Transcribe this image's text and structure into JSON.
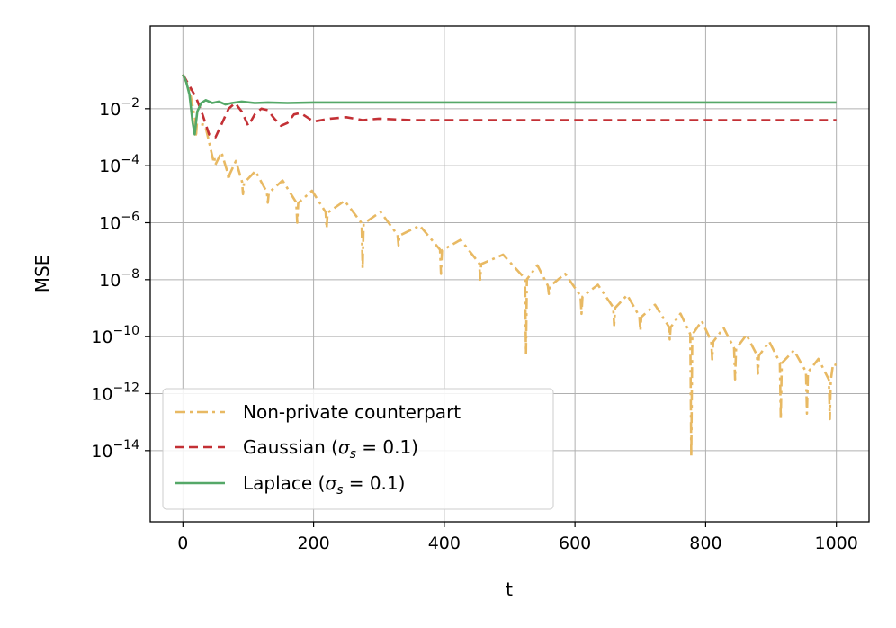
{
  "chart_data": {
    "type": "line",
    "title": "",
    "xlabel": "t",
    "ylabel": "MSE",
    "y_scale": "log",
    "xlim": [
      -50,
      1050
    ],
    "ylim_exponent": [
      -16.5,
      0.9
    ],
    "x_ticks": [
      0,
      200,
      400,
      600,
      800,
      1000
    ],
    "x_tick_labels": [
      "0",
      "200",
      "400",
      "600",
      "800",
      "1000"
    ],
    "y_tick_exponents": [
      -2,
      -4,
      -6,
      -8,
      -10,
      -12,
      -14
    ],
    "y_tick_labels": [
      {
        "base": "10",
        "exp": "−2"
      },
      {
        "base": "10",
        "exp": "−4"
      },
      {
        "base": "10",
        "exp": "−6"
      },
      {
        "base": "10",
        "exp": "−8"
      },
      {
        "base": "10",
        "exp": "−10"
      },
      {
        "base": "10",
        "exp": "−12"
      },
      {
        "base": "10",
        "exp": "−14"
      }
    ],
    "grid": true,
    "legend_position": "lower-left",
    "series": [
      {
        "name": "Non-private counterpart",
        "color": "#e8b963",
        "style": "dashdot",
        "description": "oscillating decay",
        "envelope_log10": [
          [
            0,
            -0.8
          ],
          [
            50,
            -3.4
          ],
          [
            100,
            -4.1
          ],
          [
            200,
            -4.9
          ],
          [
            300,
            -5.6
          ],
          [
            400,
            -6.4
          ],
          [
            500,
            -7.2
          ],
          [
            600,
            -7.9
          ],
          [
            700,
            -8.7
          ],
          [
            800,
            -9.5
          ],
          [
            900,
            -10.2
          ],
          [
            1000,
            -11.0
          ]
        ],
        "dips_log10": [
          [
            20,
            -3.0
          ],
          [
            48,
            -3.7
          ],
          [
            70,
            -4.5
          ],
          [
            92,
            -5.0
          ],
          [
            130,
            -5.3
          ],
          [
            175,
            -6.0
          ],
          [
            220,
            -6.2
          ],
          [
            275,
            -7.6
          ],
          [
            330,
            -6.8
          ],
          [
            395,
            -7.8
          ],
          [
            455,
            -8.0
          ],
          [
            525,
            -10.6
          ],
          [
            560,
            -8.5
          ],
          [
            610,
            -9.2
          ],
          [
            660,
            -9.6
          ],
          [
            700,
            -9.8
          ],
          [
            745,
            -10.1
          ],
          [
            778,
            -14.2
          ],
          [
            810,
            -10.8
          ],
          [
            845,
            -11.5
          ],
          [
            880,
            -11.3
          ],
          [
            915,
            -12.9
          ],
          [
            955,
            -12.7
          ],
          [
            990,
            -12.9
          ]
        ]
      },
      {
        "name": "Gaussian (σs = 0.1)",
        "name_parts": {
          "pre": "Gaussian (",
          "symbol": "σ",
          "sub": "s",
          "post": " = 0.1)"
        },
        "color": "#c33035",
        "style": "dashed",
        "description": "damped oscillation to steady state",
        "x": [
          0,
          10,
          20,
          30,
          40,
          50,
          60,
          70,
          80,
          90,
          100,
          110,
          120,
          130,
          140,
          150,
          160,
          170,
          180,
          190,
          200,
          225,
          250,
          275,
          300,
          350,
          400,
          450,
          500,
          600,
          700,
          800,
          900,
          1000
        ],
        "y_log10": [
          -0.8,
          -1.2,
          -1.6,
          -2.2,
          -2.9,
          -3.0,
          -2.5,
          -2.0,
          -1.8,
          -2.1,
          -2.6,
          -2.2,
          -2.0,
          -2.05,
          -2.35,
          -2.6,
          -2.5,
          -2.2,
          -2.15,
          -2.3,
          -2.45,
          -2.35,
          -2.3,
          -2.4,
          -2.35,
          -2.4,
          -2.4,
          -2.4,
          -2.4,
          -2.4,
          -2.4,
          -2.4,
          -2.4,
          -2.4
        ]
      },
      {
        "name": "Laplace (σs = 0.1)",
        "name_parts": {
          "pre": "Laplace (",
          "symbol": "σ",
          "sub": "s",
          "post": " = 0.1)"
        },
        "color": "#55a868",
        "style": "solid",
        "description": "quick oscillation then flat",
        "x": [
          0,
          5,
          10,
          15,
          18,
          22,
          28,
          35,
          45,
          55,
          65,
          75,
          90,
          110,
          130,
          160,
          200,
          300,
          400,
          500,
          600,
          700,
          800,
          900,
          1000
        ],
        "y_log10": [
          -0.8,
          -1.05,
          -1.5,
          -2.5,
          -2.9,
          -2.1,
          -1.8,
          -1.7,
          -1.8,
          -1.75,
          -1.85,
          -1.8,
          -1.75,
          -1.8,
          -1.78,
          -1.8,
          -1.78,
          -1.78,
          -1.78,
          -1.78,
          -1.78,
          -1.78,
          -1.78,
          -1.78,
          -1.78
        ]
      }
    ]
  }
}
